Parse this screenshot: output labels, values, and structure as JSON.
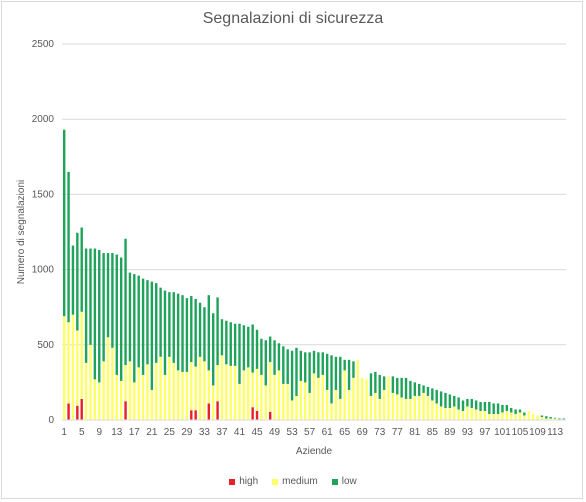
{
  "chart_data": {
    "type": "bar",
    "stacked": true,
    "title": "Segnalazioni di sicurezza",
    "xlabel": "Aziende",
    "ylabel": "Numero di segnalazioni",
    "ylim": [
      0,
      2500
    ],
    "yticks": [
      "0",
      "500",
      "1000",
      "1500",
      "2000",
      "2500"
    ],
    "grid": true,
    "legend_position": "bottom",
    "x": [
      1,
      2,
      3,
      4,
      5,
      6,
      7,
      8,
      9,
      10,
      11,
      12,
      13,
      14,
      15,
      16,
      17,
      18,
      19,
      20,
      21,
      22,
      23,
      24,
      25,
      26,
      27,
      28,
      29,
      30,
      31,
      32,
      33,
      34,
      35,
      36,
      37,
      38,
      39,
      40,
      41,
      42,
      43,
      44,
      45,
      46,
      47,
      48,
      49,
      50,
      51,
      52,
      53,
      54,
      55,
      56,
      57,
      58,
      59,
      60,
      61,
      62,
      63,
      64,
      65,
      66,
      67,
      68,
      69,
      70,
      71,
      72,
      73,
      74,
      75,
      76,
      77,
      78,
      79,
      80,
      81,
      82,
      83,
      84,
      85,
      86,
      87,
      88,
      89,
      90,
      91,
      92,
      93,
      94,
      95,
      96,
      97,
      98,
      99,
      100,
      101,
      102,
      103,
      104,
      105,
      106,
      107,
      108,
      109,
      110,
      111,
      112,
      113,
      114,
      115
    ],
    "xtick_labels": [
      "1",
      "5",
      "9",
      "13",
      "17",
      "21",
      "25",
      "29",
      "33",
      "37",
      "41",
      "45",
      "49",
      "53",
      "57",
      "61",
      "65",
      "69",
      "73",
      "77",
      "81",
      "85",
      "89",
      "93",
      "97",
      "101",
      "105",
      "109",
      "113"
    ],
    "colors": {
      "high": "#e8202a",
      "medium": "#ffff66",
      "low": "#1fa35a"
    },
    "series": [
      {
        "name": "high",
        "values": [
          0,
          110,
          0,
          95,
          140,
          0,
          0,
          0,
          0,
          0,
          0,
          0,
          0,
          0,
          125,
          0,
          0,
          0,
          0,
          0,
          0,
          0,
          0,
          0,
          0,
          0,
          0,
          0,
          0,
          65,
          65,
          0,
          0,
          110,
          0,
          125,
          0,
          0,
          0,
          0,
          0,
          0,
          0,
          85,
          60,
          0,
          0,
          55,
          0,
          0,
          0,
          0,
          0,
          0,
          0,
          0,
          0,
          0,
          0,
          0,
          0,
          0,
          0,
          0,
          0,
          0,
          0,
          0,
          0,
          0,
          0,
          0,
          0,
          0,
          0,
          0,
          0,
          0,
          0,
          0,
          0,
          0,
          0,
          0,
          0,
          0,
          0,
          0,
          0,
          0,
          0,
          0,
          0,
          0,
          0,
          0,
          0,
          0,
          0,
          0,
          0,
          0,
          0,
          0,
          0,
          0,
          0,
          0,
          0,
          0,
          0,
          0,
          0,
          0,
          0
        ]
      },
      {
        "name": "medium",
        "values": [
          690,
          540,
          700,
          500,
          580,
          380,
          500,
          270,
          250,
          390,
          550,
          480,
          300,
          260,
          240,
          390,
          250,
          350,
          300,
          370,
          200,
          380,
          420,
          300,
          420,
          380,
          330,
          320,
          320,
          320,
          290,
          420,
          390,
          220,
          230,
          240,
          430,
          370,
          360,
          360,
          240,
          330,
          350,
          230,
          280,
          300,
          230,
          330,
          300,
          330,
          240,
          240,
          130,
          160,
          260,
          250,
          180,
          310,
          280,
          300,
          200,
          110,
          200,
          140,
          330,
          200,
          280,
          400,
          280,
          270,
          160,
          180,
          140,
          200,
          290,
          180,
          170,
          150,
          140,
          140,
          160,
          160,
          180,
          160,
          130,
          110,
          90,
          80,
          80,
          90,
          70,
          60,
          90,
          80,
          70,
          60,
          60,
          40,
          40,
          40,
          50,
          60,
          50,
          40,
          50,
          30,
          60,
          40,
          30,
          20,
          10,
          10,
          10,
          5,
          5
        ]
      },
      {
        "name": "low",
        "values": [
          1240,
          1000,
          460,
          650,
          560,
          760,
          640,
          870,
          880,
          720,
          560,
          630,
          800,
          820,
          840,
          590,
          720,
          610,
          640,
          560,
          720,
          530,
          460,
          560,
          430,
          470,
          510,
          510,
          490,
          440,
          450,
          360,
          360,
          500,
          480,
          450,
          240,
          290,
          290,
          280,
          400,
          300,
          270,
          320,
          260,
          240,
          300,
          170,
          230,
          180,
          250,
          230,
          330,
          320,
          200,
          200,
          270,
          150,
          170,
          150,
          240,
          320,
          220,
          280,
          70,
          200,
          110,
          0,
          0,
          0,
          150,
          140,
          160,
          90,
          0,
          110,
          110,
          130,
          140,
          120,
          90,
          80,
          50,
          60,
          80,
          90,
          100,
          100,
          90,
          70,
          80,
          70,
          50,
          60,
          60,
          60,
          60,
          80,
          70,
          70,
          50,
          40,
          30,
          30,
          20,
          20,
          0,
          0,
          0,
          10,
          15,
          10,
          5,
          5,
          5
        ]
      }
    ]
  }
}
